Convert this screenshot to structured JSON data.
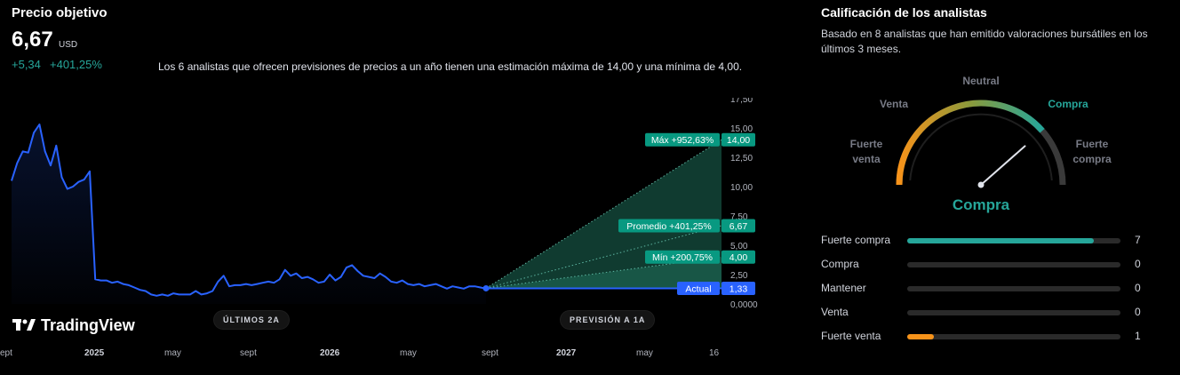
{
  "header": {
    "title": "Precio objetivo",
    "price": "6,67",
    "unit": "USD",
    "change_abs": "+5,34",
    "change_pct": "+401,25%",
    "summary": "Los 6 analistas que ofrecen previsiones de precios a un año tienen una estimación máxima de 14,00 y una mínima de 4,00."
  },
  "chart_data": {
    "type": "line",
    "title": "",
    "xlabel": "",
    "ylabel": "",
    "ylim": [
      0,
      17.5
    ],
    "y_ticks": [
      "17,50",
      "15,00",
      "12,50",
      "10,00",
      "7,50",
      "5,00",
      "2,50",
      "0,0000"
    ],
    "y_tick_values": [
      17.5,
      15,
      12.5,
      10,
      7.5,
      5,
      2.5,
      0
    ],
    "x_ticks": [
      {
        "label": "ept",
        "bold": false
      },
      {
        "label": "2025",
        "bold": true
      },
      {
        "label": "may",
        "bold": false
      },
      {
        "label": "sept",
        "bold": false
      },
      {
        "label": "2026",
        "bold": true
      },
      {
        "label": "may",
        "bold": false
      },
      {
        "label": "sept",
        "bold": false
      },
      {
        "label": "2027",
        "bold": true
      },
      {
        "label": "may",
        "bold": false
      },
      {
        "label": "16",
        "bold": false
      }
    ],
    "series": [
      {
        "name": "",
        "values": [
          10.5,
          12.0,
          13.0,
          12.9,
          14.6,
          15.3,
          13.0,
          11.8,
          13.5,
          10.8,
          9.8,
          10.0,
          10.4,
          10.6,
          11.3,
          2.1,
          2.0,
          2.0,
          1.8,
          1.9,
          1.7,
          1.6,
          1.4,
          1.2,
          1.1,
          0.8,
          0.7,
          0.8,
          0.7,
          0.9,
          0.8,
          0.8,
          0.8,
          1.1,
          0.8,
          0.9,
          1.1,
          1.9,
          2.4,
          1.5,
          1.6,
          1.6,
          1.7,
          1.6,
          1.7,
          1.8,
          1.9,
          1.8,
          2.1,
          2.9,
          2.4,
          2.6,
          2.2,
          2.3,
          2.1,
          1.8,
          1.9,
          2.5,
          2.0,
          2.3,
          3.1,
          3.3,
          2.8,
          2.4,
          2.3,
          2.2,
          2.6,
          2.3,
          1.9,
          1.8,
          2.0,
          1.7,
          1.6,
          1.7,
          1.5,
          1.6,
          1.7,
          1.5,
          1.3,
          1.5,
          1.4,
          1.3,
          1.5,
          1.5,
          1.4,
          1.3
        ]
      }
    ],
    "forecast": {
      "current": {
        "label": "Actual",
        "value": 1.33,
        "value_text": "1,33"
      },
      "max": {
        "label": "Máx +952,63%",
        "value": 14.0,
        "value_text": "14,00"
      },
      "avg": {
        "label": "Promedio +401,25%",
        "value": 6.67,
        "value_text": "6,67"
      },
      "min": {
        "label": "Mín +200,75%",
        "value": 4.0,
        "value_text": "4,00"
      }
    },
    "periods": {
      "history": "ÚLTIMOS 2A",
      "forecast": "PREVISIÓN A 1A"
    },
    "colors": {
      "line": "#2962ff",
      "accent": "#089981",
      "cone": "#1e6b58"
    }
  },
  "brand": {
    "name": "TradingView"
  },
  "rating": {
    "title": "Calificación de los analistas",
    "description": "Basado en 8 analistas que han emitido valoraciones bursátiles en los últimos 3 meses.",
    "gauge_labels": {
      "strong_sell_1": "Fuerte",
      "strong_sell_2": "venta",
      "sell": "Venta",
      "neutral": "Neutral",
      "buy": "Compra",
      "strong_buy_1": "Fuerte",
      "strong_buy_2": "compra"
    },
    "result": "Compra",
    "needle_value": 0.77,
    "rows": [
      {
        "label": "Fuerte compra",
        "count": "7",
        "value": 7,
        "color": "#26a69a"
      },
      {
        "label": "Compra",
        "count": "0",
        "value": 0,
        "color": "#26a69a"
      },
      {
        "label": "Mantener",
        "count": "0",
        "value": 0,
        "color": "#787b86"
      },
      {
        "label": "Venta",
        "count": "0",
        "value": 0,
        "color": "#f7931a"
      },
      {
        "label": "Fuerte venta",
        "count": "1",
        "value": 1,
        "color": "#f7931a"
      }
    ],
    "total": 8
  }
}
